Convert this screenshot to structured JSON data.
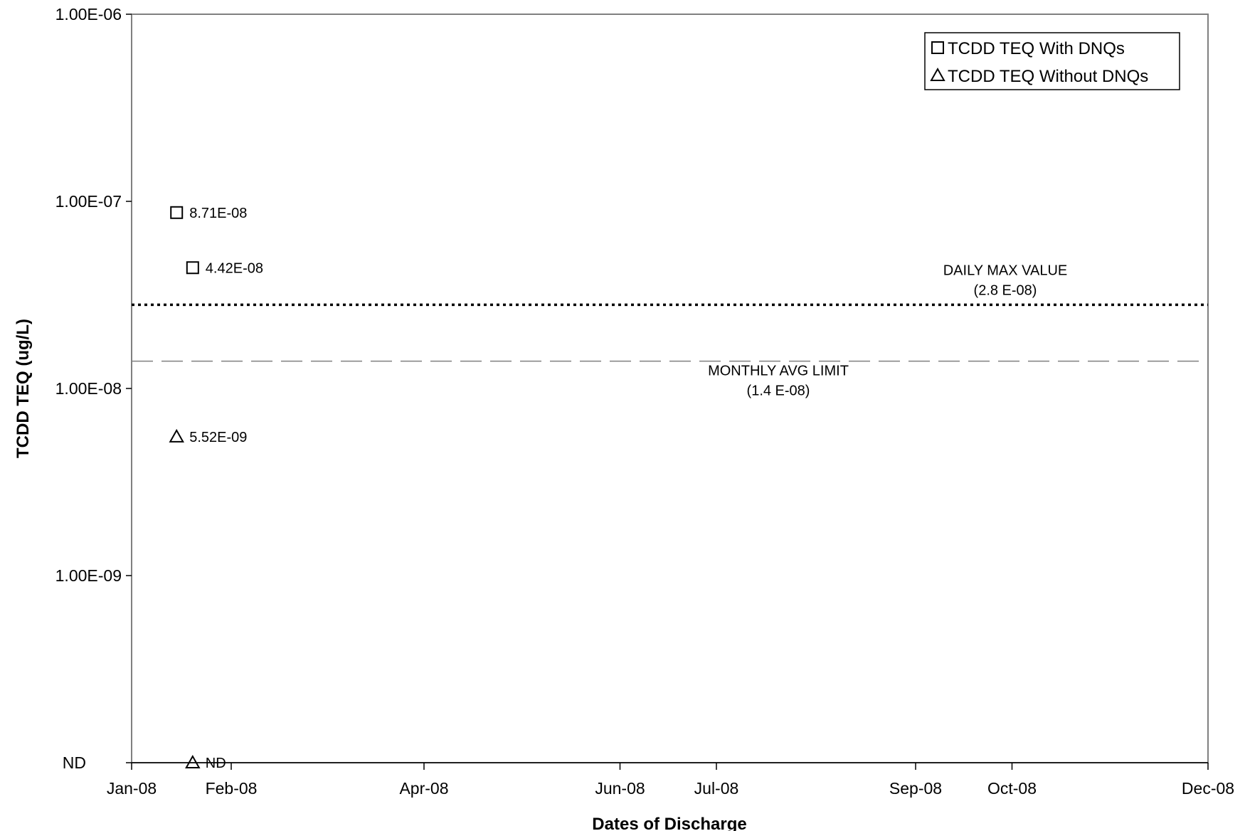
{
  "chart_data": {
    "type": "scatter",
    "xlabel": "Dates of Discharge",
    "ylabel": "TCDD TEQ (ug/L)",
    "y_scale": "log",
    "ylim": [
      1e-10,
      1e-06
    ],
    "y_ticks": [
      {
        "value": 1e-06,
        "label": "1.00E-06"
      },
      {
        "value": 1e-07,
        "label": "1.00E-07"
      },
      {
        "value": 1e-08,
        "label": "1.00E-08"
      },
      {
        "value": 1e-09,
        "label": "1.00E-09"
      },
      {
        "value": 1e-10,
        "label": "ND"
      }
    ],
    "xlim": [
      "2008-01-01",
      "2008-12-01"
    ],
    "x_ticks": [
      {
        "date": "2008-01-01",
        "label": "Jan-08"
      },
      {
        "date": "2008-02-01",
        "label": "Feb-08"
      },
      {
        "date": "2008-04-01",
        "label": "Apr-08"
      },
      {
        "date": "2008-06-01",
        "label": "Jun-08"
      },
      {
        "date": "2008-07-01",
        "label": "Jul-08"
      },
      {
        "date": "2008-09-01",
        "label": "Sep-08"
      },
      {
        "date": "2008-10-01",
        "label": "Oct-08"
      },
      {
        "date": "2008-12-01",
        "label": "Dec-08"
      }
    ],
    "legend_position": "top-right",
    "grid": false,
    "series": [
      {
        "name": "TCDD TEQ With DNQs",
        "marker": "square",
        "points": [
          {
            "x": "2008-01-15",
            "y": 8.71e-08,
            "label": "8.71E-08"
          },
          {
            "x": "2008-01-20",
            "y": 4.42e-08,
            "label": "4.42E-08"
          }
        ]
      },
      {
        "name": "TCDD TEQ Without DNQs",
        "marker": "triangle",
        "points": [
          {
            "x": "2008-01-15",
            "y": 5.52e-09,
            "label": "5.52E-09"
          },
          {
            "x": "2008-01-20",
            "y": 1e-10,
            "label": "ND"
          }
        ]
      }
    ],
    "reference_lines": [
      {
        "name": "daily-max",
        "y": 2.8e-08,
        "style": "dotted",
        "label_line1": "DAILY MAX VALUE",
        "label_line2": "(2.8 E-08)",
        "label_position": "above"
      },
      {
        "name": "monthly-avg",
        "y": 1.4e-08,
        "style": "dashed",
        "label_line1": "MONTHLY AVG LIMIT",
        "label_line2": "(1.4 E-08)",
        "label_position": "below"
      }
    ]
  }
}
